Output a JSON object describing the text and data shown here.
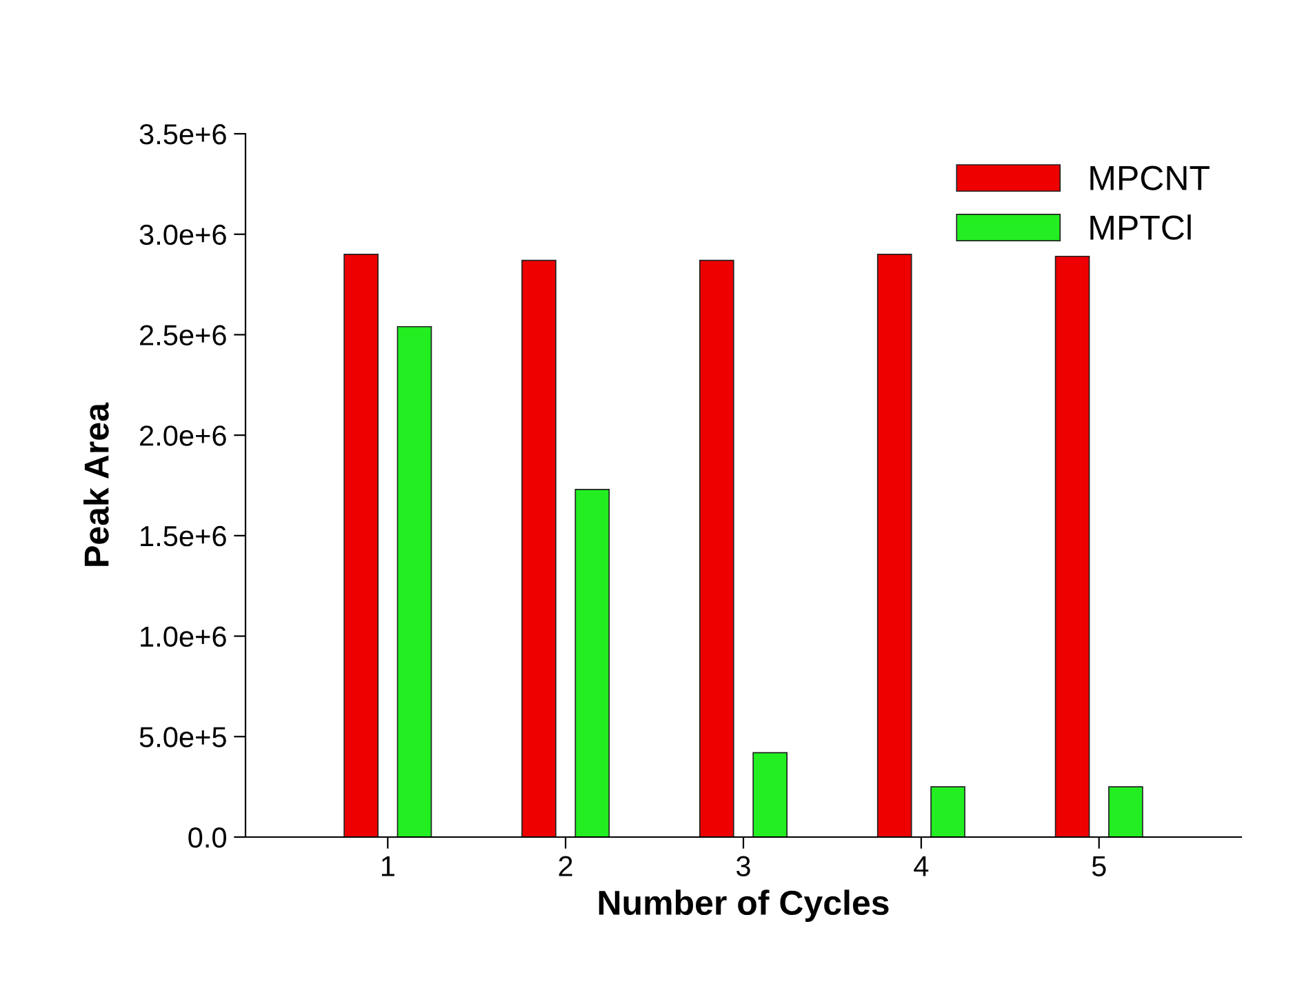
{
  "chart_data": {
    "type": "bar",
    "xlabel": "Number of Cycles",
    "ylabel": "Peak Area",
    "categories": [
      "1",
      "2",
      "3",
      "4",
      "5"
    ],
    "series": [
      {
        "name": "MPCNT",
        "color": "#ee0000",
        "values": [
          2900000,
          2870000,
          2870000,
          2900000,
          2890000
        ]
      },
      {
        "name": "MPTCl",
        "color": "#22ee22",
        "values": [
          2540000,
          1730000,
          420000,
          250000,
          250000
        ]
      }
    ],
    "ylim": [
      0,
      3500000
    ],
    "yticks": [
      {
        "value": 0,
        "label": "0.0"
      },
      {
        "value": 500000,
        "label": "5.0e+5"
      },
      {
        "value": 1000000,
        "label": "1.0e+6"
      },
      {
        "value": 1500000,
        "label": "1.5e+6"
      },
      {
        "value": 2000000,
        "label": "2.0e+6"
      },
      {
        "value": 2500000,
        "label": "2.5e+6"
      },
      {
        "value": 3000000,
        "label": "3.0e+6"
      },
      {
        "value": 3500000,
        "label": "3.5e+6"
      }
    ],
    "grid": false,
    "legend": "top right"
  }
}
